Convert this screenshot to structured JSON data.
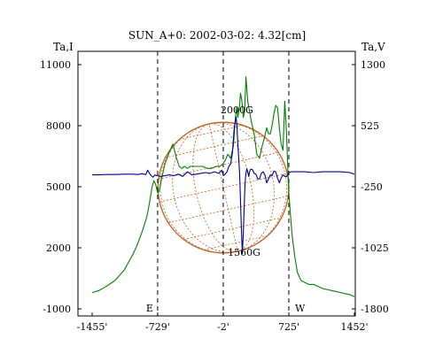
{
  "chart_data": {
    "type": "line",
    "title": "SUN_A+0: 2002-03-02: 4.32[cm]",
    "left_axis_label": "Ta,I",
    "right_axis_label": "Ta,V",
    "left_ticks": [
      "11000",
      "8000",
      "5000",
      "2000",
      "-1000"
    ],
    "left_tick_values": [
      11000,
      8000,
      5000,
      2000,
      -1000
    ],
    "right_ticks": [
      "1300",
      "525",
      "-250",
      "-1025",
      "-1800"
    ],
    "right_tick_values": [
      1300,
      525,
      -250,
      -1025,
      -1800
    ],
    "x_ticks": [
      "-1455'",
      "-729'",
      "-2'",
      "725'",
      "1452'"
    ],
    "x_tick_values": [
      -1455,
      -729,
      -2,
      725,
      1452
    ],
    "xlim": [
      -1455,
      1452
    ],
    "ylim_left": [
      -1000,
      11000
    ],
    "ylim_right": [
      -1800,
      1300
    ],
    "limb_markers": [
      {
        "x": -729,
        "label": "E"
      },
      {
        "x": -2,
        "label": ""
      },
      {
        "x": 725,
        "label": "W"
      }
    ],
    "solar_disk": {
      "center_x": 0,
      "radius": 725,
      "color": "#c06020"
    },
    "annotations": [
      {
        "text": "2000G",
        "x": 150,
        "y_left": 8600
      },
      {
        "text": "1560G",
        "x": 230,
        "y_left": 1600
      }
    ],
    "series": [
      {
        "axis": "left",
        "color": "#008000",
        "x": [
          -1455,
          -1380,
          -1300,
          -1200,
          -1100,
          -1000,
          -950,
          -900,
          -850,
          -820,
          -790,
          -770,
          -750,
          -729,
          -710,
          -690,
          -650,
          -600,
          -560,
          -520,
          -490,
          -460,
          -430,
          -400,
          -370,
          -330,
          -280,
          -230,
          -180,
          -130,
          -80,
          -40,
          -10,
          20,
          50,
          80,
          110,
          130,
          145,
          160,
          175,
          190,
          205,
          220,
          235,
          250,
          270,
          290,
          310,
          340,
          370,
          400,
          430,
          460,
          480,
          500,
          520,
          540,
          560,
          580,
          600,
          620,
          640,
          660,
          680,
          700,
          715,
          725,
          740,
          760,
          790,
          820,
          860,
          900,
          950,
          1000,
          1050,
          1100,
          1150,
          1200,
          1250,
          1300,
          1350,
          1400,
          1452
        ],
        "y": [
          -200,
          -100,
          100,
          400,
          900,
          1700,
          2200,
          2800,
          3500,
          4200,
          5000,
          5300,
          5100,
          4700,
          4800,
          5300,
          6100,
          6700,
          7100,
          6400,
          6000,
          5900,
          6000,
          5900,
          6000,
          6000,
          6000,
          6000,
          5900,
          5900,
          6000,
          6000,
          6100,
          6300,
          6600,
          6400,
          7000,
          8200,
          8900,
          8400,
          8800,
          9600,
          9200,
          8400,
          8700,
          10400,
          9200,
          8700,
          8200,
          7600,
          6600,
          6400,
          7000,
          7500,
          7900,
          7600,
          7600,
          8000,
          8600,
          9000,
          8900,
          7900,
          7100,
          6800,
          9200,
          7600,
          5700,
          4700,
          3800,
          2700,
          1600,
          800,
          400,
          300,
          200,
          200,
          100,
          0,
          -50,
          -100,
          -150,
          -200,
          -250,
          -300,
          -400
        ]
      },
      {
        "axis": "right",
        "color": "#00008b",
        "x": [
          -1455,
          -1400,
          -1300,
          -1200,
          -1100,
          -1000,
          -950,
          -900,
          -880,
          -860,
          -840,
          -820,
          -800,
          -780,
          -760,
          -740,
          -729,
          -700,
          -650,
          -600,
          -550,
          -500,
          -450,
          -400,
          -350,
          -300,
          -250,
          -200,
          -150,
          -100,
          -50,
          -20,
          0,
          20,
          40,
          60,
          80,
          100,
          120,
          140,
          150,
          160,
          170,
          180,
          190,
          200,
          210,
          220,
          230,
          240,
          250,
          260,
          270,
          280,
          290,
          300,
          320,
          340,
          360,
          380,
          400,
          420,
          440,
          460,
          480,
          500,
          520,
          540,
          560,
          580,
          600,
          620,
          640,
          660,
          680,
          700,
          725,
          750,
          800,
          850,
          900,
          1000,
          1100,
          1200,
          1300,
          1400,
          1452
        ],
        "y": [
          -100,
          -100,
          -95,
          -95,
          -90,
          -90,
          -95,
          -85,
          -90,
          -95,
          -40,
          -80,
          -110,
          -130,
          -100,
          -110,
          -110,
          -120,
          -110,
          -100,
          -110,
          -90,
          -120,
          -60,
          -100,
          -90,
          -80,
          -70,
          -80,
          -60,
          -80,
          -40,
          -110,
          -90,
          -60,
          10,
          40,
          180,
          500,
          640,
          530,
          300,
          100,
          -100,
          -450,
          -800,
          -1100,
          -850,
          -500,
          -200,
          -80,
          -20,
          -60,
          -120,
          -60,
          -30,
          -30,
          -80,
          -90,
          -150,
          -150,
          -80,
          -60,
          -100,
          -200,
          -150,
          -100,
          -110,
          -50,
          -60,
          -140,
          -200,
          -140,
          -100,
          -120,
          -120,
          -70,
          -60,
          -60,
          -60,
          -60,
          -70,
          -60,
          -60,
          -60,
          -70,
          -90
        ]
      }
    ]
  }
}
